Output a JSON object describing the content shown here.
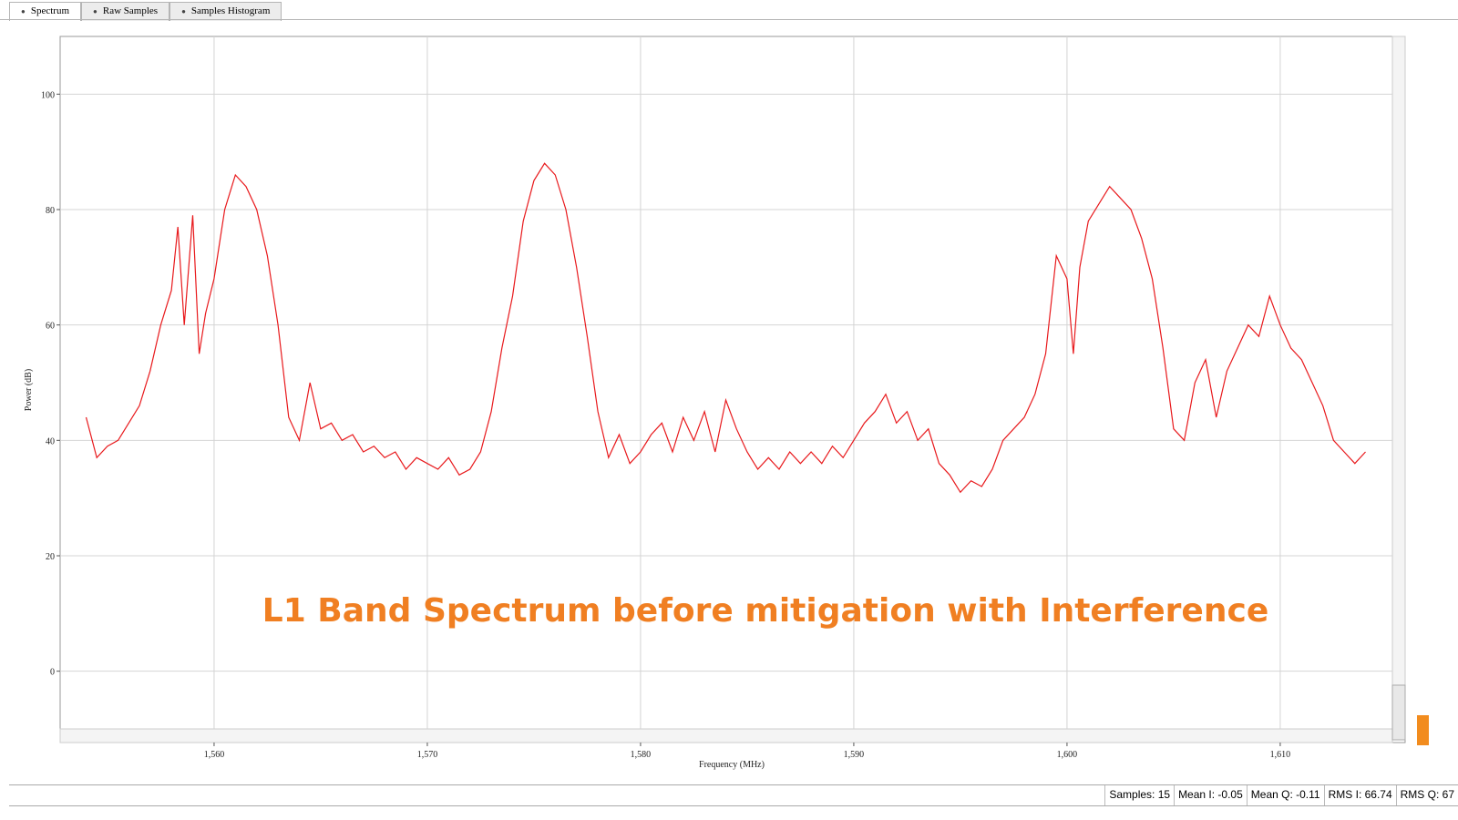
{
  "tabs": [
    "Spectrum",
    "Raw Samples",
    "Samples Histogram"
  ],
  "chart_data": {
    "type": "line",
    "annotation": "L1 Band Spectrum before mitigation with Interference",
    "xlabel": "Frequency (MHz)",
    "ylabel": "Power (dB)",
    "color": "#e8191c",
    "grid": true,
    "xlim": [
      1552.78,
      1615.26
    ],
    "ylim": [
      -10,
      110
    ],
    "xticks": [
      {
        "value": 1560,
        "label": "1,560"
      },
      {
        "value": 1570,
        "label": "1,570"
      },
      {
        "value": 1580,
        "label": "1,580"
      },
      {
        "value": 1590,
        "label": "1,590"
      },
      {
        "value": 1600,
        "label": "1,600"
      },
      {
        "value": 1610,
        "label": "1,610"
      }
    ],
    "yticks": [
      0,
      20,
      40,
      60,
      80,
      100
    ],
    "x": [
      1554,
      1554.5,
      1555,
      1555.5,
      1556,
      1556.5,
      1557,
      1557.5,
      1558,
      1558.3,
      1558.6,
      1559,
      1559.3,
      1559.6,
      1560,
      1560.5,
      1561,
      1561.5,
      1562,
      1562.5,
      1563,
      1563.5,
      1564,
      1564.5,
      1565,
      1565.5,
      1566,
      1566.5,
      1567,
      1567.5,
      1568,
      1568.5,
      1569,
      1569.5,
      1570,
      1570.5,
      1571,
      1571.5,
      1572,
      1572.5,
      1573,
      1573.5,
      1574,
      1574.5,
      1575,
      1575.5,
      1576,
      1576.5,
      1577,
      1577.5,
      1578,
      1578.5,
      1579,
      1579.5,
      1580,
      1580.5,
      1581,
      1581.5,
      1582,
      1582.5,
      1583,
      1583.5,
      1584,
      1584.5,
      1585,
      1585.5,
      1586,
      1586.5,
      1587,
      1587.5,
      1588,
      1588.5,
      1589,
      1589.5,
      1590,
      1590.5,
      1591,
      1591.5,
      1592,
      1592.5,
      1593,
      1593.5,
      1594,
      1594.5,
      1595,
      1595.5,
      1596,
      1596.5,
      1597,
      1597.5,
      1598,
      1598.5,
      1599,
      1599.5,
      1600,
      1600.3,
      1600.6,
      1601,
      1601.5,
      1602,
      1602.5,
      1603,
      1603.5,
      1604,
      1604.5,
      1605,
      1605.5,
      1606,
      1606.5,
      1607,
      1607.5,
      1608,
      1608.5,
      1609,
      1609.5,
      1610,
      1610.5,
      1611,
      1611.5,
      1612,
      1612.5,
      1613,
      1613.5,
      1614
    ],
    "values": [
      44,
      37,
      39,
      40,
      43,
      46,
      52,
      60,
      66,
      77,
      60,
      79,
      55,
      62,
      68,
      80,
      86,
      84,
      80,
      72,
      60,
      44,
      40,
      50,
      42,
      43,
      40,
      41,
      38,
      39,
      37,
      38,
      35,
      37,
      36,
      35,
      37,
      34,
      35,
      38,
      45,
      56,
      65,
      78,
      85,
      88,
      86,
      80,
      70,
      58,
      45,
      37,
      41,
      36,
      38,
      41,
      43,
      38,
      44,
      40,
      45,
      38,
      47,
      42,
      38,
      35,
      37,
      35,
      38,
      36,
      38,
      36,
      39,
      37,
      40,
      43,
      45,
      48,
      43,
      45,
      40,
      42,
      36,
      34,
      31,
      33,
      32,
      35,
      40,
      42,
      44,
      48,
      55,
      72,
      68,
      55,
      70,
      78,
      81,
      84,
      82,
      80,
      75,
      68,
      56,
      42,
      40,
      50,
      54,
      44,
      52,
      56,
      60,
      58,
      65,
      60,
      56,
      54,
      50,
      46,
      40,
      38,
      36,
      38
    ]
  },
  "status": [
    "Samples: 15",
    "Mean I: -0.05",
    "Mean Q: -0.11",
    "RMS I: 66.74",
    "RMS Q: 67"
  ]
}
